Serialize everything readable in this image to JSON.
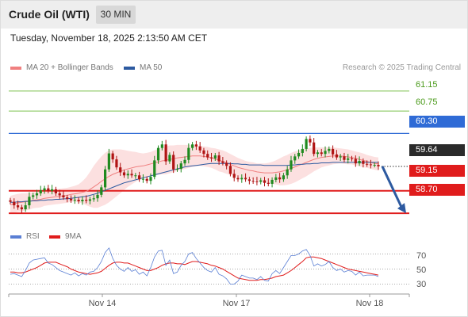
{
  "header": {
    "title": "Crude Oil (WTI)",
    "timeframe": "30 MIN"
  },
  "timestamp": "Tuesday, November 18, 2025 2:13:50 AM CET",
  "legend": {
    "ma20": {
      "label": "MA 20 + Bollinger Bands",
      "color": "#f08080"
    },
    "ma50": {
      "label": "MA 50",
      "color": "#2d5aa0"
    },
    "credit": "Research © 2025 Trading Central"
  },
  "levels": [
    {
      "value": "61.15",
      "style": "plain"
    },
    {
      "value": "60.75",
      "style": "plain"
    },
    {
      "value": "60.30",
      "style": "blue"
    },
    {
      "value": "59.64",
      "style": "dark"
    },
    {
      "value": "59.15",
      "style": "red"
    },
    {
      "value": "58.70",
      "style": "red"
    }
  ],
  "rsi_legend": {
    "rsi": {
      "label": "RSI",
      "color": "#5a7fd4"
    },
    "ma9": {
      "label": "9MA",
      "color": "#e01c1c"
    }
  },
  "rsi_axis": [
    "70",
    "50",
    "30"
  ],
  "x_axis": [
    "Nov 14",
    "Nov 17",
    "Nov 18"
  ],
  "colors": {
    "up": "#1f8a1f",
    "down": "#b01414",
    "support": "#e01c1c",
    "resistance_blue": "#2f6bd6",
    "resistance_green": "#7cc04f",
    "arrow": "#2d5aa0"
  },
  "chart_data": {
    "type": "candlestick",
    "instrument": "Crude Oil (WTI)",
    "interval": "30 MIN",
    "y_range": [
      58.4,
      61.45
    ],
    "close": [
      58.93,
      58.86,
      58.82,
      58.78,
      58.86,
      59.03,
      59.06,
      59.1,
      59.16,
      59.2,
      59.15,
      59.18,
      59.1,
      59.06,
      59.02,
      58.99,
      58.96,
      58.97,
      58.94,
      58.97,
      58.95,
      58.98,
      59.0,
      59.07,
      59.22,
      59.58,
      59.9,
      59.78,
      59.62,
      59.52,
      59.46,
      59.49,
      59.46,
      59.46,
      59.38,
      59.39,
      59.35,
      59.43,
      59.76,
      60.01,
      60.08,
      59.74,
      59.87,
      59.58,
      59.59,
      59.7,
      59.77,
      60.01,
      60.08,
      60.04,
      59.96,
      59.89,
      59.82,
      59.8,
      59.86,
      59.74,
      59.71,
      59.65,
      59.49,
      59.41,
      59.38,
      59.41,
      59.38,
      59.35,
      59.34,
      59.33,
      59.36,
      59.31,
      59.29,
      59.37,
      59.42,
      59.38,
      59.46,
      59.58,
      59.76,
      59.84,
      59.91,
      59.99,
      60.19,
      60.12,
      59.89,
      59.92,
      59.89,
      59.95,
      59.99,
      59.88,
      59.82,
      59.84,
      59.77,
      59.8,
      59.79,
      59.7,
      59.75,
      59.69,
      59.68,
      59.67,
      59.67,
      59.64
    ],
    "ma20": [
      58.87,
      58.89,
      58.91,
      58.92,
      58.93,
      58.94,
      58.96,
      58.97,
      58.98,
      59.0,
      59.01,
      59.02,
      59.03,
      59.04,
      59.05,
      59.06,
      59.08,
      59.09,
      59.1,
      59.12,
      59.14,
      59.18,
      59.23,
      59.28,
      59.34,
      59.39,
      59.44,
      59.48,
      59.51,
      59.54,
      59.57,
      59.59,
      59.61,
      59.63,
      59.64,
      59.65,
      59.67,
      59.69,
      59.71,
      59.73,
      59.75,
      59.76,
      59.78,
      59.79,
      59.81,
      59.82,
      59.83,
      59.84,
      59.85,
      59.85,
      59.85,
      59.84,
      59.83,
      59.81,
      59.79,
      59.76,
      59.74,
      59.71,
      59.68,
      59.65,
      59.62,
      59.6,
      59.58,
      59.56,
      59.55,
      59.53,
      59.52,
      59.51,
      59.51,
      59.51,
      59.52,
      59.53,
      59.55,
      59.57,
      59.6,
      59.63,
      59.66,
      59.69,
      59.72,
      59.75,
      59.78,
      59.8,
      59.82,
      59.83,
      59.84,
      59.85,
      59.85,
      59.85,
      59.84,
      59.83,
      59.82,
      59.8,
      59.78,
      59.76,
      59.74,
      59.72,
      59.7,
      59.69
    ],
    "ma50": [
      58.92,
      58.92,
      58.93,
      58.93,
      58.94,
      58.94,
      58.95,
      58.95,
      58.96,
      58.96,
      58.97,
      58.97,
      58.98,
      58.98,
      58.99,
      58.99,
      59.0,
      59.01,
      59.02,
      59.03,
      59.04,
      59.06,
      59.08,
      59.1,
      59.13,
      59.16,
      59.19,
      59.22,
      59.25,
      59.28,
      59.31,
      59.33,
      59.35,
      59.37,
      59.39,
      59.41,
      59.43,
      59.45,
      59.47,
      59.49,
      59.51,
      59.53,
      59.55,
      59.57,
      59.59,
      59.61,
      59.63,
      59.64,
      59.65,
      59.66,
      59.67,
      59.68,
      59.69,
      59.7,
      59.7,
      59.7,
      59.7,
      59.7,
      59.7,
      59.69,
      59.69,
      59.68,
      59.68,
      59.67,
      59.67,
      59.67,
      59.67,
      59.66,
      59.66,
      59.66,
      59.66,
      59.66,
      59.66,
      59.66,
      59.67,
      59.67,
      59.68,
      59.68,
      59.69,
      59.69,
      59.7,
      59.7,
      59.71,
      59.71,
      59.71,
      59.72,
      59.72,
      59.72,
      59.72,
      59.72,
      59.72,
      59.72,
      59.72,
      59.72,
      59.72,
      59.72,
      59.72,
      59.72
    ],
    "bb_width": [
      0.18,
      0.18,
      0.18,
      0.18,
      0.17,
      0.17,
      0.16,
      0.16,
      0.16,
      0.15,
      0.15,
      0.15,
      0.15,
      0.15,
      0.15,
      0.15,
      0.15,
      0.16,
      0.18,
      0.22,
      0.28,
      0.35,
      0.42,
      0.47,
      0.5,
      0.52,
      0.52,
      0.5,
      0.47,
      0.44,
      0.4,
      0.36,
      0.33,
      0.3,
      0.27,
      0.25,
      0.24,
      0.24,
      0.25,
      0.26,
      0.27,
      0.28,
      0.28,
      0.27,
      0.26,
      0.25,
      0.24,
      0.23,
      0.22,
      0.21,
      0.2,
      0.2,
      0.2,
      0.2,
      0.21,
      0.22,
      0.22,
      0.22,
      0.21,
      0.2,
      0.19,
      0.18,
      0.17,
      0.17,
      0.17,
      0.17,
      0.18,
      0.19,
      0.2,
      0.22,
      0.24,
      0.27,
      0.29,
      0.3,
      0.31,
      0.31,
      0.3,
      0.29,
      0.28,
      0.26,
      0.24,
      0.22,
      0.2,
      0.19,
      0.18,
      0.17,
      0.16,
      0.15,
      0.15,
      0.15,
      0.14,
      0.14,
      0.14,
      0.14,
      0.13,
      0.13,
      0.13,
      0.13
    ],
    "rsi": [
      43,
      44,
      42,
      40,
      48,
      58,
      62,
      63,
      64,
      65,
      58,
      56,
      52,
      48,
      46,
      44,
      42,
      45,
      41,
      44,
      42,
      46,
      47,
      52,
      60,
      72,
      78,
      64,
      55,
      50,
      47,
      52,
      47,
      49,
      43,
      46,
      41,
      52,
      66,
      74,
      75,
      55,
      62,
      44,
      46,
      55,
      60,
      70,
      72,
      64,
      58,
      52,
      48,
      46,
      52,
      43,
      41,
      37,
      30,
      30,
      34,
      42,
      40,
      38,
      38,
      36,
      40,
      35,
      34,
      44,
      48,
      44,
      52,
      60,
      68,
      68,
      70,
      74,
      76,
      68,
      54,
      57,
      54,
      56,
      60,
      52,
      48,
      50,
      46,
      48,
      47,
      42,
      46,
      41,
      42,
      42,
      42,
      40
    ],
    "rsi_ma9": [
      46,
      46,
      45,
      45,
      46,
      48,
      50,
      52,
      55,
      58,
      59,
      59,
      59,
      57,
      55,
      53,
      50,
      48,
      46,
      45,
      44,
      43,
      44,
      45,
      47,
      51,
      55,
      58,
      59,
      59,
      58,
      58,
      56,
      54,
      52,
      50,
      48,
      48,
      50,
      52,
      55,
      57,
      58,
      58,
      57,
      57,
      56,
      58,
      60,
      60,
      59,
      58,
      57,
      55,
      54,
      52,
      50,
      47,
      44,
      41,
      38,
      37,
      36,
      35,
      35,
      35,
      36,
      36,
      37,
      38,
      40,
      41,
      42,
      45,
      48,
      52,
      56,
      60,
      65,
      66,
      66,
      65,
      64,
      62,
      60,
      58,
      56,
      54,
      52,
      50,
      49,
      48,
      47,
      46,
      45,
      44,
      43,
      42
    ],
    "rsi_axis": [
      70,
      50,
      30
    ],
    "resistance": [
      61.15,
      60.75,
      60.3
    ],
    "last_price": 59.64,
    "support": [
      59.15,
      58.7
    ],
    "x_ticks": [
      "Nov 14",
      "Nov 17",
      "Nov 18"
    ],
    "forecast_direction": "down"
  }
}
